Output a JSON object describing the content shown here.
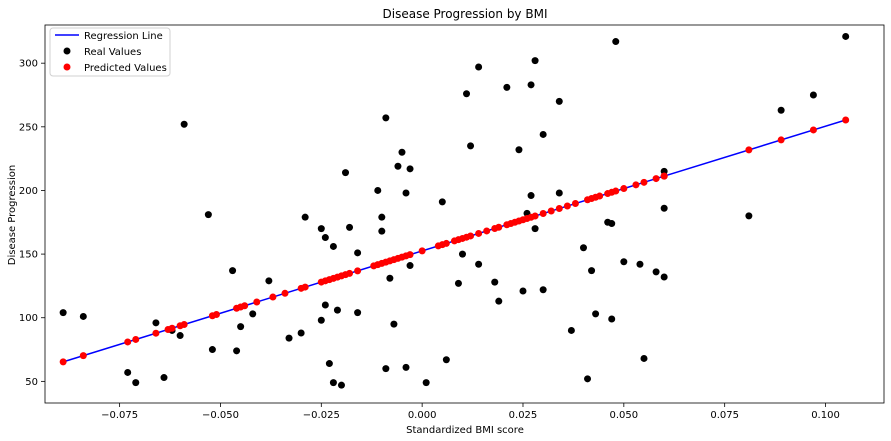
{
  "chart_data": {
    "type": "scatter",
    "title": "Disease Progression by BMI",
    "xlabel": "Standardized BMI score",
    "ylabel": "Disease Progression",
    "xlim": [
      -0.0935,
      0.1145
    ],
    "ylim": [
      33,
      330
    ],
    "xticks": [
      -0.075,
      -0.05,
      -0.025,
      0.0,
      0.025,
      0.05,
      0.075,
      0.1
    ],
    "xtick_labels": [
      "−0.075",
      "−0.050",
      "−0.025",
      "0.000",
      "0.025",
      "0.050",
      "0.075",
      "0.100"
    ],
    "yticks": [
      50,
      100,
      150,
      200,
      250,
      300
    ],
    "ytick_labels": [
      "50",
      "100",
      "150",
      "200",
      "250",
      "300"
    ],
    "grid": false,
    "legend": {
      "position": "top-left",
      "entries": [
        {
          "label": "Regression Line",
          "kind": "line",
          "color": "#0000ff"
        },
        {
          "label": "Real Values",
          "kind": "marker",
          "color": "#000000"
        },
        {
          "label": "Predicted Values",
          "kind": "marker",
          "color": "#ff0000"
        }
      ]
    },
    "regression": {
      "slope": 979.8,
      "intercept": 152.5
    },
    "series": [
      {
        "name": "Real Values",
        "color": "#000000",
        "points": [
          [
            -0.089,
            104
          ],
          [
            -0.084,
            101
          ],
          [
            -0.073,
            57
          ],
          [
            -0.071,
            49
          ],
          [
            -0.066,
            96
          ],
          [
            -0.064,
            53
          ],
          [
            -0.062,
            90
          ],
          [
            -0.06,
            86
          ],
          [
            -0.059,
            252
          ],
          [
            -0.053,
            181
          ],
          [
            -0.052,
            75
          ],
          [
            -0.047,
            137
          ],
          [
            -0.046,
            74
          ],
          [
            -0.045,
            93
          ],
          [
            -0.042,
            103
          ],
          [
            -0.038,
            129
          ],
          [
            -0.033,
            84
          ],
          [
            -0.03,
            88
          ],
          [
            -0.029,
            179
          ],
          [
            -0.025,
            98
          ],
          [
            -0.025,
            170
          ],
          [
            -0.024,
            110
          ],
          [
            -0.024,
            163
          ],
          [
            -0.023,
            64
          ],
          [
            -0.022,
            49
          ],
          [
            -0.022,
            156
          ],
          [
            -0.021,
            106
          ],
          [
            -0.02,
            47
          ],
          [
            -0.019,
            214
          ],
          [
            -0.018,
            171
          ],
          [
            -0.016,
            151
          ],
          [
            -0.016,
            104
          ],
          [
            -0.011,
            200
          ],
          [
            -0.01,
            179
          ],
          [
            -0.01,
            168
          ],
          [
            -0.009,
            257
          ],
          [
            -0.009,
            60
          ],
          [
            -0.008,
            131
          ],
          [
            -0.007,
            95
          ],
          [
            -0.006,
            219
          ],
          [
            -0.005,
            230
          ],
          [
            -0.004,
            198
          ],
          [
            -0.004,
            61
          ],
          [
            -0.003,
            217
          ],
          [
            -0.003,
            141
          ],
          [
            0.001,
            49
          ],
          [
            0.005,
            191
          ],
          [
            0.006,
            67
          ],
          [
            0.009,
            127
          ],
          [
            0.01,
            150
          ],
          [
            0.011,
            276
          ],
          [
            0.012,
            235
          ],
          [
            0.014,
            297
          ],
          [
            0.014,
            142
          ],
          [
            0.018,
            128
          ],
          [
            0.019,
            113
          ],
          [
            0.021,
            281
          ],
          [
            0.024,
            232
          ],
          [
            0.025,
            121
          ],
          [
            0.026,
            182
          ],
          [
            0.027,
            283
          ],
          [
            0.027,
            196
          ],
          [
            0.028,
            170
          ],
          [
            0.028,
            302
          ],
          [
            0.03,
            244
          ],
          [
            0.03,
            122
          ],
          [
            0.034,
            270
          ],
          [
            0.034,
            198
          ],
          [
            0.037,
            90
          ],
          [
            0.04,
            155
          ],
          [
            0.041,
            52
          ],
          [
            0.042,
            137
          ],
          [
            0.043,
            103
          ],
          [
            0.046,
            175
          ],
          [
            0.047,
            174
          ],
          [
            0.047,
            99
          ],
          [
            0.048,
            317
          ],
          [
            0.05,
            144
          ],
          [
            0.054,
            142
          ],
          [
            0.055,
            68
          ],
          [
            0.058,
            136
          ],
          [
            0.06,
            215
          ],
          [
            0.06,
            132
          ],
          [
            0.06,
            186
          ],
          [
            0.081,
            180
          ],
          [
            0.089,
            263
          ],
          [
            0.097,
            275
          ],
          [
            0.105,
            321
          ]
        ]
      },
      {
        "name": "Predicted Values",
        "color": "#ff0000",
        "x": [
          -0.089,
          -0.084,
          -0.073,
          -0.071,
          -0.066,
          -0.063,
          -0.062,
          -0.06,
          -0.059,
          -0.052,
          -0.051,
          -0.046,
          -0.045,
          -0.044,
          -0.041,
          -0.037,
          -0.034,
          -0.03,
          -0.029,
          -0.025,
          -0.024,
          -0.023,
          -0.022,
          -0.021,
          -0.02,
          -0.019,
          -0.018,
          -0.016,
          -0.012,
          -0.011,
          -0.01,
          -0.009,
          -0.008,
          -0.007,
          -0.006,
          -0.005,
          -0.004,
          -0.003,
          0.0,
          0.004,
          0.005,
          0.006,
          0.008,
          0.009,
          0.01,
          0.011,
          0.012,
          0.014,
          0.016,
          0.018,
          0.019,
          0.021,
          0.022,
          0.023,
          0.024,
          0.025,
          0.026,
          0.027,
          0.028,
          0.03,
          0.032,
          0.034,
          0.036,
          0.038,
          0.041,
          0.042,
          0.043,
          0.044,
          0.046,
          0.047,
          0.048,
          0.05,
          0.053,
          0.055,
          0.058,
          0.06,
          0.06,
          0.081,
          0.089,
          0.097,
          0.105
        ]
      }
    ]
  }
}
